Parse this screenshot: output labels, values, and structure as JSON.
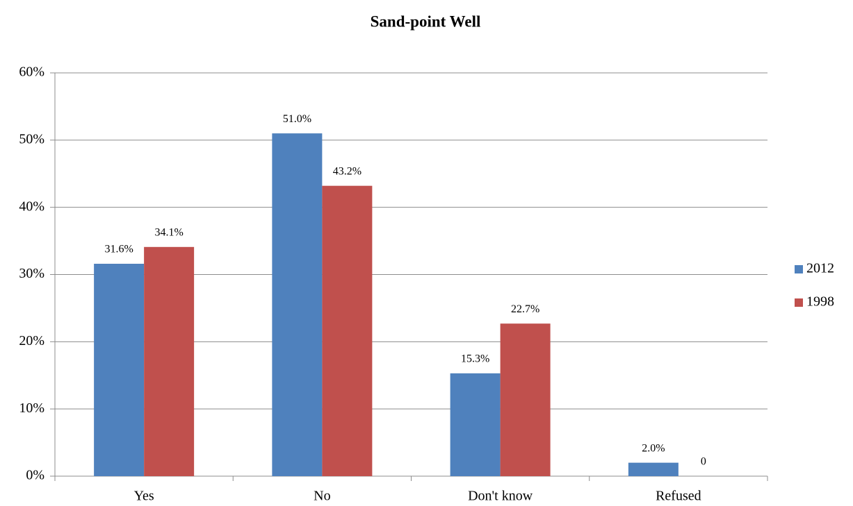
{
  "chart_data": {
    "type": "bar",
    "title": "Sand-point Well",
    "categories": [
      "Yes",
      "No",
      "Don't know",
      "Refused"
    ],
    "series": [
      {
        "name": "2012",
        "color": "#4f81bd",
        "values": [
          31.6,
          51.0,
          15.3,
          2.0
        ],
        "value_labels": [
          "31.6%",
          "51.0%",
          "15.3%",
          "2.0%"
        ]
      },
      {
        "name": "1998",
        "color": "#c0504d",
        "values": [
          34.1,
          43.2,
          22.7,
          0
        ],
        "value_labels": [
          "34.1%",
          "43.2%",
          "22.7%",
          "0"
        ]
      }
    ],
    "ylim": [
      0,
      60
    ],
    "yticks": [
      {
        "value": 0,
        "label": "0%"
      },
      {
        "value": 10,
        "label": "10%"
      },
      {
        "value": 20,
        "label": "20%"
      },
      {
        "value": 30,
        "label": "30%"
      },
      {
        "value": 40,
        "label": "40%"
      },
      {
        "value": 50,
        "label": "50%"
      },
      {
        "value": 60,
        "label": "60%"
      }
    ],
    "grid": true,
    "legend": "right"
  }
}
